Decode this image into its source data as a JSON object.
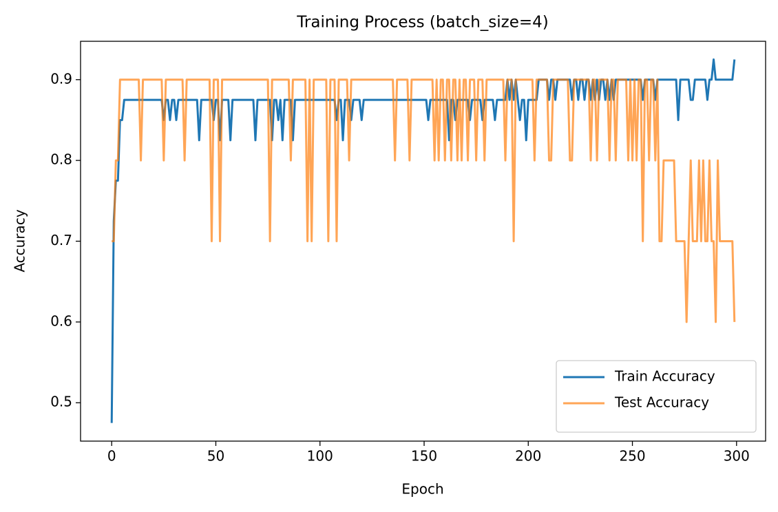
{
  "chart_data": {
    "type": "line",
    "title": "Training Process (batch_size=4)",
    "x_label": "Epoch",
    "y_label": "Accuracy",
    "x": [
      0,
      1,
      2,
      3,
      4,
      5,
      6,
      7,
      8,
      9,
      10,
      11,
      12,
      13,
      14,
      15,
      16,
      17,
      18,
      19,
      20,
      21,
      22,
      23,
      24,
      25,
      26,
      27,
      28,
      29,
      30,
      31,
      32,
      33,
      34,
      35,
      36,
      37,
      38,
      39,
      40,
      41,
      42,
      43,
      44,
      45,
      46,
      47,
      48,
      49,
      50,
      51,
      52,
      53,
      54,
      55,
      56,
      57,
      58,
      59,
      60,
      61,
      62,
      63,
      64,
      65,
      66,
      67,
      68,
      69,
      70,
      71,
      72,
      73,
      74,
      75,
      76,
      77,
      78,
      79,
      80,
      81,
      82,
      83,
      84,
      85,
      86,
      87,
      88,
      89,
      90,
      91,
      92,
      93,
      94,
      95,
      96,
      97,
      98,
      99,
      100,
      101,
      102,
      103,
      104,
      105,
      106,
      107,
      108,
      109,
      110,
      111,
      112,
      113,
      114,
      115,
      116,
      117,
      118,
      119,
      120,
      121,
      122,
      123,
      124,
      125,
      126,
      127,
      128,
      129,
      130,
      131,
      132,
      133,
      134,
      135,
      136,
      137,
      138,
      139,
      140,
      141,
      142,
      143,
      144,
      145,
      146,
      147,
      148,
      149,
      150,
      151,
      152,
      153,
      154,
      155,
      156,
      157,
      158,
      159,
      160,
      161,
      162,
      163,
      164,
      165,
      166,
      167,
      168,
      169,
      170,
      171,
      172,
      173,
      174,
      175,
      176,
      177,
      178,
      179,
      180,
      181,
      182,
      183,
      184,
      185,
      186,
      187,
      188,
      189,
      190,
      191,
      192,
      193,
      194,
      195,
      196,
      197,
      198,
      199,
      200,
      201,
      202,
      203,
      204,
      205,
      206,
      207,
      208,
      209,
      210,
      211,
      212,
      213,
      214,
      215,
      216,
      217,
      218,
      219,
      220,
      221,
      222,
      223,
      224,
      225,
      226,
      227,
      228,
      229,
      230,
      231,
      232,
      233,
      234,
      235,
      236,
      237,
      238,
      239,
      240,
      241,
      242,
      243,
      244,
      245,
      246,
      247,
      248,
      249,
      250,
      251,
      252,
      253,
      254,
      255,
      256,
      257,
      258,
      259,
      260,
      261,
      262,
      263,
      264,
      265,
      266,
      267,
      268,
      269,
      270,
      271,
      272,
      273,
      274,
      275,
      276,
      277,
      278,
      279,
      280,
      281,
      282,
      283,
      284,
      285,
      286,
      287,
      288,
      289,
      290,
      291,
      292,
      293,
      294,
      295,
      296,
      297,
      298,
      299
    ],
    "series": [
      {
        "name": "Train Accuracy",
        "color": "#1f77b4",
        "values": [
          0.475,
          0.725,
          0.775,
          0.775,
          0.85,
          0.85,
          0.875,
          0.875,
          0.875,
          0.875,
          0.875,
          0.875,
          0.875,
          0.875,
          0.875,
          0.875,
          0.875,
          0.875,
          0.875,
          0.875,
          0.875,
          0.875,
          0.875,
          0.875,
          0.875,
          0.85,
          0.875,
          0.875,
          0.85,
          0.875,
          0.875,
          0.85,
          0.875,
          0.875,
          0.875,
          0.875,
          0.875,
          0.875,
          0.875,
          0.875,
          0.875,
          0.875,
          0.825,
          0.875,
          0.875,
          0.875,
          0.875,
          0.875,
          0.875,
          0.85,
          0.875,
          0.875,
          0.825,
          0.875,
          0.875,
          0.875,
          0.875,
          0.825,
          0.875,
          0.875,
          0.875,
          0.875,
          0.875,
          0.875,
          0.875,
          0.875,
          0.875,
          0.875,
          0.875,
          0.825,
          0.875,
          0.875,
          0.875,
          0.875,
          0.875,
          0.875,
          0.875,
          0.825,
          0.875,
          0.875,
          0.85,
          0.875,
          0.825,
          0.875,
          0.875,
          0.875,
          0.875,
          0.825,
          0.875,
          0.875,
          0.875,
          0.875,
          0.875,
          0.875,
          0.875,
          0.875,
          0.875,
          0.875,
          0.875,
          0.875,
          0.875,
          0.875,
          0.875,
          0.875,
          0.875,
          0.875,
          0.875,
          0.875,
          0.85,
          0.875,
          0.875,
          0.825,
          0.875,
          0.875,
          0.875,
          0.85,
          0.875,
          0.875,
          0.875,
          0.875,
          0.85,
          0.875,
          0.875,
          0.875,
          0.875,
          0.875,
          0.875,
          0.875,
          0.875,
          0.875,
          0.875,
          0.875,
          0.875,
          0.875,
          0.875,
          0.875,
          0.875,
          0.875,
          0.875,
          0.875,
          0.875,
          0.875,
          0.875,
          0.875,
          0.875,
          0.875,
          0.875,
          0.875,
          0.875,
          0.875,
          0.875,
          0.875,
          0.85,
          0.875,
          0.875,
          0.875,
          0.875,
          0.875,
          0.875,
          0.875,
          0.875,
          0.875,
          0.825,
          0.875,
          0.875,
          0.85,
          0.875,
          0.875,
          0.875,
          0.875,
          0.875,
          0.875,
          0.85,
          0.875,
          0.875,
          0.875,
          0.875,
          0.875,
          0.85,
          0.875,
          0.875,
          0.875,
          0.875,
          0.875,
          0.85,
          0.875,
          0.875,
          0.875,
          0.875,
          0.875,
          0.9,
          0.875,
          0.9,
          0.875,
          0.9,
          0.875,
          0.85,
          0.875,
          0.875,
          0.825,
          0.875,
          0.875,
          0.875,
          0.875,
          0.875,
          0.9,
          0.9,
          0.9,
          0.9,
          0.9,
          0.875,
          0.9,
          0.9,
          0.875,
          0.9,
          0.9,
          0.9,
          0.9,
          0.9,
          0.9,
          0.9,
          0.875,
          0.9,
          0.9,
          0.875,
          0.9,
          0.9,
          0.875,
          0.9,
          0.9,
          0.875,
          0.9,
          0.875,
          0.9,
          0.875,
          0.9,
          0.9,
          0.875,
          0.9,
          0.875,
          0.9,
          0.875,
          0.9,
          0.9,
          0.9,
          0.9,
          0.9,
          0.9,
          0.9,
          0.9,
          0.9,
          0.9,
          0.9,
          0.9,
          0.9,
          0.875,
          0.9,
          0.9,
          0.9,
          0.9,
          0.9,
          0.875,
          0.9,
          0.9,
          0.9,
          0.9,
          0.9,
          0.9,
          0.9,
          0.9,
          0.9,
          0.9,
          0.85,
          0.9,
          0.9,
          0.9,
          0.9,
          0.9,
          0.875,
          0.875,
          0.9,
          0.9,
          0.9,
          0.9,
          0.9,
          0.9,
          0.875,
          0.9,
          0.9,
          0.925,
          0.9,
          0.9,
          0.9,
          0.9,
          0.9,
          0.9,
          0.9,
          0.9,
          0.9,
          0.925
        ]
      },
      {
        "name": "Test Accuracy",
        "color": "#ff7f0e",
        "values": [
          0.7,
          0.7,
          0.8,
          0.8,
          0.9,
          0.9,
          0.9,
          0.9,
          0.9,
          0.9,
          0.9,
          0.9,
          0.9,
          0.9,
          0.8,
          0.9,
          0.9,
          0.9,
          0.9,
          0.9,
          0.9,
          0.9,
          0.9,
          0.9,
          0.9,
          0.8,
          0.9,
          0.9,
          0.9,
          0.9,
          0.9,
          0.9,
          0.9,
          0.9,
          0.9,
          0.8,
          0.9,
          0.9,
          0.9,
          0.9,
          0.9,
          0.9,
          0.9,
          0.9,
          0.9,
          0.9,
          0.9,
          0.9,
          0.7,
          0.9,
          0.9,
          0.9,
          0.7,
          0.9,
          0.9,
          0.9,
          0.9,
          0.9,
          0.9,
          0.9,
          0.9,
          0.9,
          0.9,
          0.9,
          0.9,
          0.9,
          0.9,
          0.9,
          0.9,
          0.9,
          0.9,
          0.9,
          0.9,
          0.9,
          0.9,
          0.9,
          0.7,
          0.9,
          0.9,
          0.9,
          0.9,
          0.9,
          0.9,
          0.9,
          0.9,
          0.9,
          0.8,
          0.9,
          0.9,
          0.9,
          0.9,
          0.9,
          0.9,
          0.9,
          0.7,
          0.9,
          0.7,
          0.9,
          0.9,
          0.9,
          0.9,
          0.9,
          0.9,
          0.9,
          0.7,
          0.9,
          0.9,
          0.9,
          0.7,
          0.9,
          0.9,
          0.9,
          0.9,
          0.9,
          0.8,
          0.9,
          0.9,
          0.9,
          0.9,
          0.9,
          0.9,
          0.9,
          0.9,
          0.9,
          0.9,
          0.9,
          0.9,
          0.9,
          0.9,
          0.9,
          0.9,
          0.9,
          0.9,
          0.9,
          0.9,
          0.9,
          0.8,
          0.9,
          0.9,
          0.9,
          0.9,
          0.9,
          0.9,
          0.8,
          0.9,
          0.9,
          0.9,
          0.9,
          0.9,
          0.9,
          0.9,
          0.9,
          0.9,
          0.9,
          0.9,
          0.8,
          0.9,
          0.8,
          0.9,
          0.9,
          0.8,
          0.9,
          0.9,
          0.8,
          0.9,
          0.9,
          0.8,
          0.9,
          0.8,
          0.9,
          0.9,
          0.8,
          0.9,
          0.9,
          0.9,
          0.8,
          0.9,
          0.9,
          0.9,
          0.8,
          0.9,
          0.9,
          0.9,
          0.9,
          0.9,
          0.9,
          0.9,
          0.9,
          0.9,
          0.8,
          0.9,
          0.9,
          0.9,
          0.7,
          0.9,
          0.9,
          0.9,
          0.9,
          0.9,
          0.9,
          0.9,
          0.9,
          0.9,
          0.8,
          0.9,
          0.9,
          0.9,
          0.9,
          0.9,
          0.9,
          0.8,
          0.8,
          0.9,
          0.9,
          0.9,
          0.9,
          0.9,
          0.9,
          0.9,
          0.9,
          0.8,
          0.8,
          0.9,
          0.9,
          0.9,
          0.9,
          0.9,
          0.9,
          0.9,
          0.9,
          0.8,
          0.9,
          0.9,
          0.8,
          0.9,
          0.9,
          0.9,
          0.9,
          0.9,
          0.8,
          0.9,
          0.9,
          0.8,
          0.9,
          0.9,
          0.9,
          0.9,
          0.9,
          0.8,
          0.9,
          0.8,
          0.9,
          0.8,
          0.9,
          0.9,
          0.7,
          0.9,
          0.9,
          0.8,
          0.9,
          0.9,
          0.8,
          0.9,
          0.7,
          0.7,
          0.8,
          0.8,
          0.8,
          0.8,
          0.8,
          0.8,
          0.7,
          0.7,
          0.7,
          0.7,
          0.7,
          0.6,
          0.7,
          0.8,
          0.7,
          0.7,
          0.7,
          0.8,
          0.7,
          0.8,
          0.7,
          0.7,
          0.8,
          0.7,
          0.7,
          0.6,
          0.8,
          0.7,
          0.7,
          0.7,
          0.7,
          0.7,
          0.7,
          0.7,
          0.6
        ]
      }
    ],
    "xlim": [
      -14.95,
      313.95
    ],
    "xticks": [
      0,
      50,
      100,
      150,
      200,
      250,
      300
    ],
    "ylim": [
      0.4525,
      0.9475
    ],
    "yticks": [
      0.5,
      0.6,
      0.7,
      0.8,
      0.9
    ],
    "legend": "lower right",
    "line_alpha": [
      1,
      0.7
    ]
  }
}
